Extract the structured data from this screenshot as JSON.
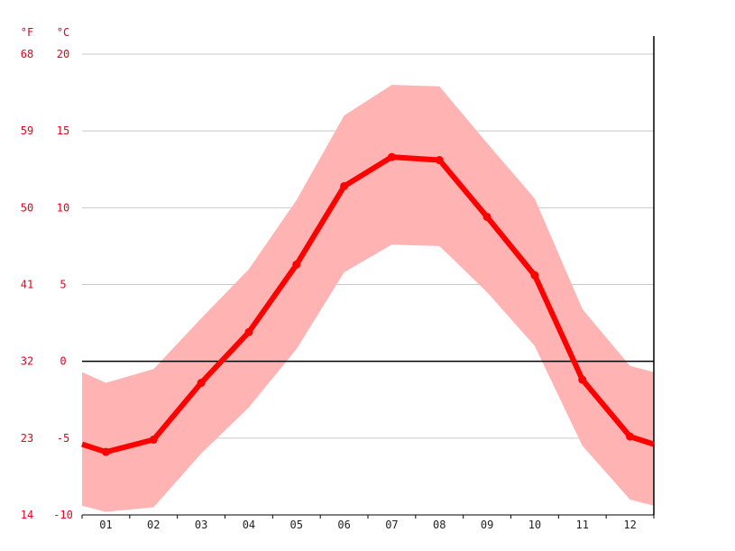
{
  "chart_data": {
    "type": "line",
    "categories": [
      "01",
      "02",
      "03",
      "04",
      "05",
      "06",
      "07",
      "08",
      "09",
      "10",
      "11",
      "12"
    ],
    "series": [
      {
        "values": [
          -5.9,
          -5.1,
          -1.4,
          1.9,
          6.3,
          11.4,
          13.3,
          13.1,
          9.4,
          5.6,
          -1.2,
          -4.9
        ],
        "band_low": [
          -9.8,
          -9.5,
          -6.0,
          -3.0,
          0.8,
          5.8,
          7.6,
          7.5,
          4.5,
          1.0,
          -5.5,
          -9.0
        ],
        "band_high": [
          -1.4,
          -0.5,
          2.8,
          6.0,
          10.5,
          16.0,
          18.0,
          17.9,
          14.2,
          10.6,
          3.4,
          -0.3
        ],
        "edge_start": {
          "value": -5.4,
          "low": -9.4,
          "high": -0.7
        },
        "edge_end": {
          "value": -5.4,
          "low": -9.4,
          "high": -0.7
        }
      }
    ],
    "y_axis_celsius": {
      "unit": "°C",
      "ticks": [
        "20",
        "15",
        "10",
        "5",
        "0",
        "-5",
        "-10"
      ],
      "tick_values": [
        20,
        15,
        10,
        5,
        0,
        -5,
        -10
      ],
      "ylim": [
        -10,
        20
      ]
    },
    "y_axis_fahrenheit": {
      "unit": "°F",
      "ticks": [
        "68",
        "59",
        "50",
        "41",
        "32",
        "23",
        "14"
      ]
    },
    "grid": true,
    "colors": {
      "line": "#ff0000",
      "band": "#ffb3b3",
      "labels": "#e8001c",
      "grid": "#c8c8c8",
      "zero_line": "#000000"
    }
  }
}
